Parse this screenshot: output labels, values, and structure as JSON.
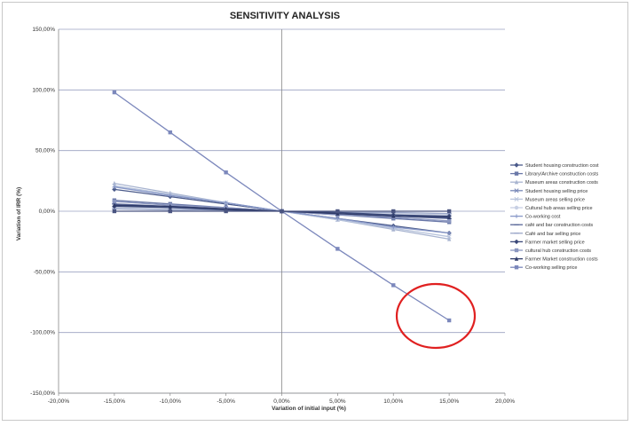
{
  "chart_data": {
    "type": "line",
    "title": "SENSITIVITY ANALYSIS",
    "xlabel": "Variation of initial input  (%)",
    "ylabel": "Variation of IRR (%)",
    "xlim": [
      -20,
      20
    ],
    "ylim": [
      -150,
      150
    ],
    "x_ticks": [
      "-20,00%",
      "-15,00%",
      "-10,00%",
      "-5,00%",
      "0,00%",
      "5,00%",
      "10,00%",
      "15,00%",
      "20,00%"
    ],
    "y_ticks": [
      "150,00%",
      "100,00%",
      "50,00%",
      "0,00%",
      "-50,00%",
      "-100,00%",
      "-150,00%"
    ],
    "x": [
      -15,
      -10,
      -5,
      0,
      5,
      10,
      15
    ],
    "grid": "horizontal",
    "legend_position": "right",
    "annotation": {
      "type": "circle",
      "color": "#e02020",
      "target": "Co-working selling price at 15%"
    },
    "series": [
      {
        "name": "Student housing construction cost",
        "color": "#4a5a8a",
        "marker": "diamond",
        "values": [
          18,
          12,
          6,
          0,
          -6,
          -12,
          -18
        ]
      },
      {
        "name": "Library/Archive construction costs",
        "color": "#6a78a8",
        "marker": "square",
        "values": [
          9,
          6,
          3,
          0,
          -3,
          -6,
          -9
        ]
      },
      {
        "name": "Museum areas construction costs",
        "color": "#a8b4d0",
        "marker": "triangle",
        "values": [
          23,
          15,
          7,
          0,
          -7,
          -15,
          -23
        ]
      },
      {
        "name": "Student housing selling price",
        "color": "#7888b8",
        "marker": "x",
        "values": [
          5,
          3,
          2,
          0,
          -2,
          -3,
          -5
        ]
      },
      {
        "name": "Museum areas selling price",
        "color": "#b8c4dc",
        "marker": "star",
        "values": [
          21,
          14,
          7,
          0,
          -7,
          -14,
          -21
        ]
      },
      {
        "name": "Cultural hub areas selling price",
        "color": "#c8d0e4",
        "marker": "circle",
        "values": [
          3,
          2,
          1,
          0,
          -1,
          -2,
          -3
        ]
      },
      {
        "name": "Co-working cost",
        "color": "#8898c8",
        "marker": "plus",
        "values": [
          20,
          13,
          7,
          0,
          -6,
          -13,
          -18
        ]
      },
      {
        "name": "café and bar construction costs",
        "color": "#5a6898",
        "marker": "dash",
        "values": [
          6,
          4,
          2,
          0,
          -2,
          -4,
          -6
        ]
      },
      {
        "name": "Café and bar selling price",
        "color": "#9aa6c8",
        "marker": "dash",
        "values": [
          2,
          1,
          1,
          0,
          -1,
          -1,
          -2
        ]
      },
      {
        "name": "Farmer market selling price",
        "color": "#3a4878",
        "marker": "diamond",
        "values": [
          4,
          3,
          1,
          0,
          -1,
          -3,
          -4
        ]
      },
      {
        "name": "cultural hub construction costs",
        "color": "#8a96c0",
        "marker": "square",
        "values": [
          8,
          5,
          3,
          0,
          -3,
          -5,
          -8
        ]
      },
      {
        "name": "Farmer Market construction costs",
        "color": "#2e3a68",
        "marker": "triangle",
        "values": [
          5,
          4,
          2,
          0,
          -2,
          -4,
          -5
        ]
      },
      {
        "name": "Co-working selling price",
        "color": "#7c88bc",
        "marker": "square",
        "values": [
          98,
          65,
          32,
          0,
          -31,
          -61,
          -90
        ]
      },
      {
        "name": "",
        "color": "#4a5480",
        "marker": "square",
        "values": [
          0,
          0,
          0,
          0,
          0,
          0,
          0
        ]
      }
    ]
  }
}
